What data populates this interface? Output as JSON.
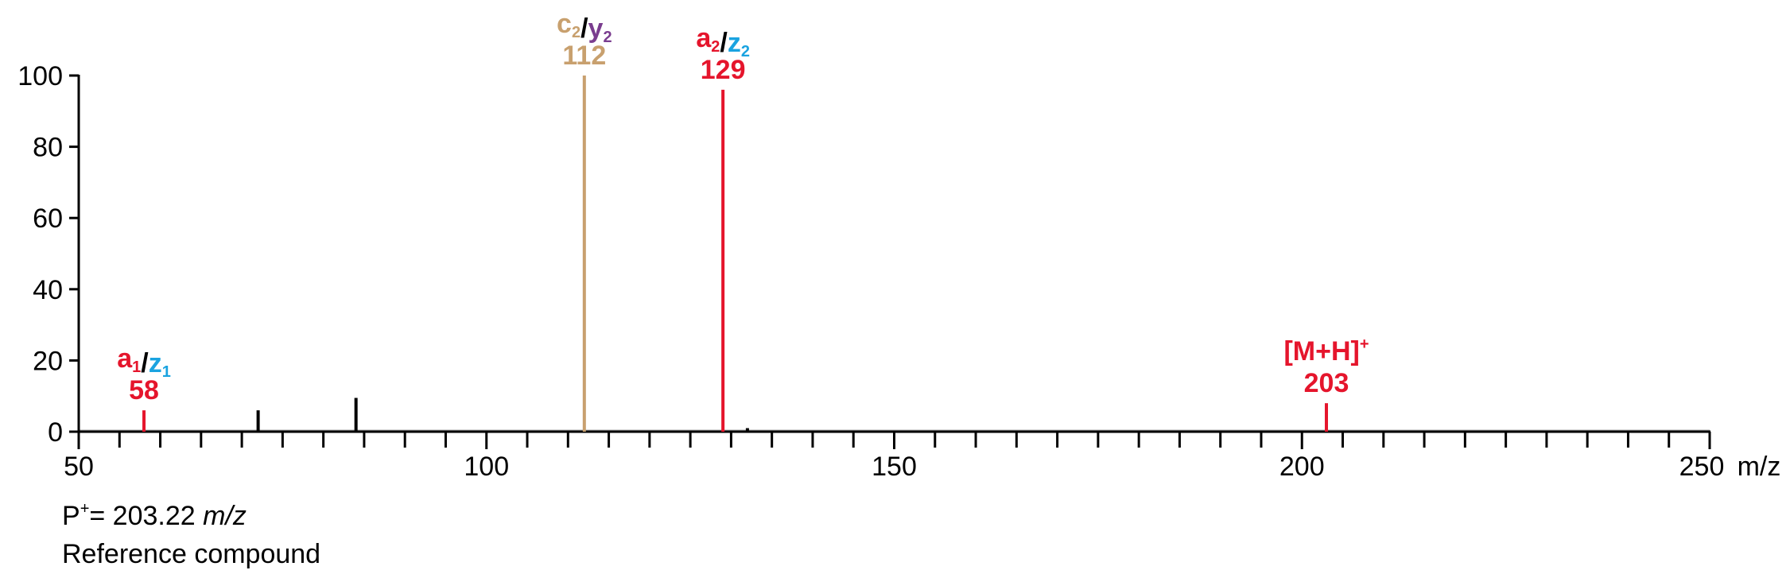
{
  "chart_data": {
    "type": "bar",
    "xlim": [
      50,
      250
    ],
    "ylim": [
      0,
      100
    ],
    "x_ticks": [
      50,
      100,
      150,
      200,
      250
    ],
    "y_ticks": [
      0,
      20,
      40,
      60,
      80,
      100
    ],
    "x_unit": "m/z",
    "grid": false,
    "peaks": [
      {
        "mz": 58,
        "intensity": 6,
        "color": "#e5152c"
      },
      {
        "mz": 72,
        "intensity": 6,
        "color": "#000000"
      },
      {
        "mz": 84,
        "intensity": 9.5,
        "color": "#000000"
      },
      {
        "mz": 112,
        "intensity": 100,
        "color": "#c8a06e"
      },
      {
        "mz": 129,
        "intensity": 96,
        "color": "#e5152c"
      },
      {
        "mz": 132,
        "intensity": 1,
        "color": "#000000"
      },
      {
        "mz": 203,
        "intensity": 8,
        "color": "#e5152c"
      }
    ],
    "annotations": [
      {
        "mz": 58,
        "value": "58",
        "value_color": "#e5152c",
        "label_parts": [
          {
            "text": "a",
            "color": "#e5152c"
          },
          {
            "text": "1",
            "color": "#e5152c",
            "sub": true
          },
          {
            "text": "/",
            "color": "#000000"
          },
          {
            "text": "z",
            "color": "#1aa3e0"
          },
          {
            "text": "1",
            "color": "#1aa3e0",
            "sub": true
          }
        ]
      },
      {
        "mz": 112,
        "value": "112",
        "value_color": "#c8a06e",
        "label_parts": [
          {
            "text": "c",
            "color": "#c8a06e"
          },
          {
            "text": "2",
            "color": "#c8a06e",
            "sub": true
          },
          {
            "text": "/",
            "color": "#000000"
          },
          {
            "text": "y",
            "color": "#7a3d8f"
          },
          {
            "text": "2",
            "color": "#7a3d8f",
            "sub": true
          }
        ]
      },
      {
        "mz": 129,
        "value": "129",
        "value_color": "#e5152c",
        "label_parts": [
          {
            "text": "a",
            "color": "#e5152c"
          },
          {
            "text": "2",
            "color": "#e5152c",
            "sub": true
          },
          {
            "text": "/",
            "color": "#000000"
          },
          {
            "text": "z",
            "color": "#1aa3e0"
          },
          {
            "text": "2",
            "color": "#1aa3e0",
            "sub": true
          }
        ]
      },
      {
        "mz": 203,
        "value": "203",
        "value_color": "#e5152c",
        "label_parts": [
          {
            "text": "[M+H]",
            "color": "#e5152c"
          },
          {
            "text": "+",
            "color": "#e5152c",
            "sup": true
          }
        ]
      }
    ]
  },
  "notes": {
    "precursor_prefix": "P",
    "precursor_sup": "+",
    "precursor_value": "= 203.22 ",
    "precursor_unit": "m/z",
    "compound": "Reference compound"
  }
}
